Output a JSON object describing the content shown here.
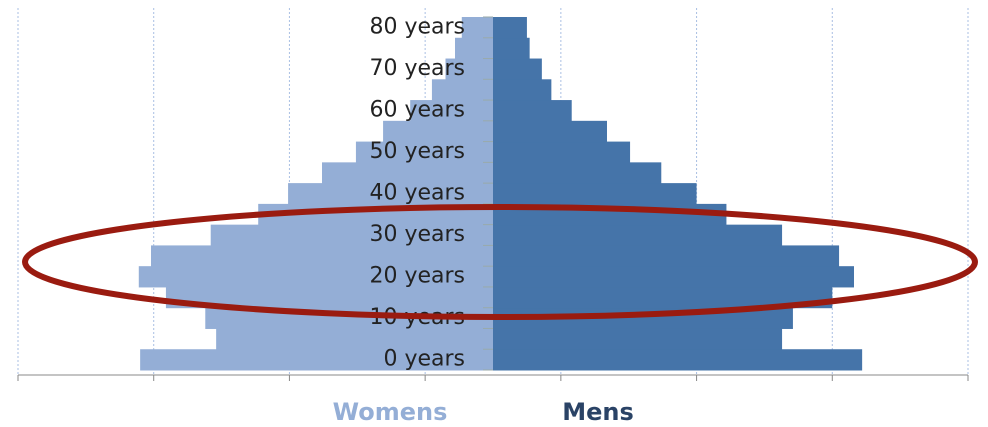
{
  "chart_data": {
    "type": "pyramid",
    "categories": [
      "0 years",
      null,
      "10 years",
      null,
      "20 years",
      null,
      "30 years",
      null,
      "40 years",
      null,
      "50 years",
      null,
      "60 years",
      null,
      "70 years",
      null,
      "80 years"
    ],
    "series": [
      {
        "name": "Womens",
        "color": "#94aed6",
        "side": "left",
        "values": [
          2.6,
          2.04,
          2.12,
          2.41,
          2.61,
          2.52,
          2.08,
          1.73,
          1.51,
          1.26,
          1.01,
          0.81,
          0.61,
          0.45,
          0.35,
          0.28,
          0.23
        ]
      },
      {
        "name": "Mens",
        "color": "#4574a9",
        "side": "right",
        "values": [
          2.72,
          2.13,
          2.21,
          2.5,
          2.66,
          2.55,
          2.13,
          1.72,
          1.5,
          1.24,
          1.01,
          0.84,
          0.58,
          0.43,
          0.36,
          0.27,
          0.25
        ]
      }
    ],
    "xlim": [
      -3.5,
      3.5
    ],
    "xticks": [
      -3.5,
      -2.5,
      -1.5,
      -0.5,
      0.5,
      1.5,
      2.5,
      3.5
    ],
    "grid": true
  }
}
